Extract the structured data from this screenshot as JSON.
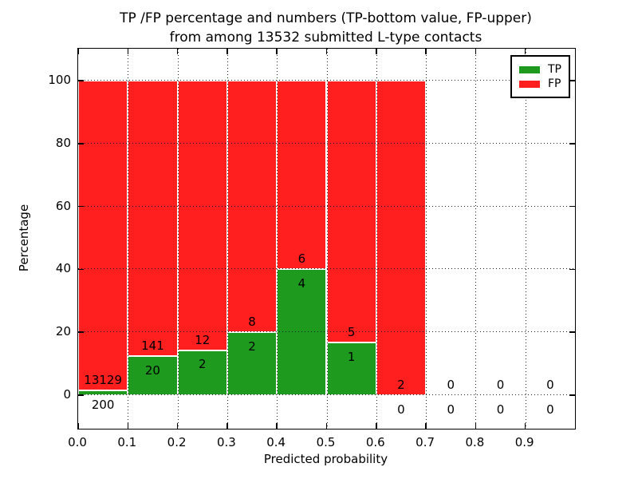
{
  "chart_data": {
    "type": "bar",
    "stacked": true,
    "title": "TP /FP percentage and numbers (TP-bottom value, FP-upper)\nfrom among 13532 submitted L-type contacts",
    "title_line1": "TP /FP percentage and numbers (TP-bottom value, FP-upper)",
    "title_line2": "from among 13532 submitted L-type contacts",
    "xlabel": "Predicted probability",
    "ylabel": "Percentage",
    "total_contacts": 13532,
    "xlim": [
      0.0,
      1.0
    ],
    "ylim": [
      -10.7,
      110.2
    ],
    "yticks": [
      {
        "value": 0,
        "label": "0"
      },
      {
        "value": 20,
        "label": "20"
      },
      {
        "value": 40,
        "label": "40"
      },
      {
        "value": 60,
        "label": "60"
      },
      {
        "value": 80,
        "label": "80"
      },
      {
        "value": 100,
        "label": "100"
      }
    ],
    "xticks": [
      {
        "value": 0.0,
        "label": "0.0"
      },
      {
        "value": 0.1,
        "label": "0.1"
      },
      {
        "value": 0.2,
        "label": "0.2"
      },
      {
        "value": 0.3,
        "label": "0.3"
      },
      {
        "value": 0.4,
        "label": "0.4"
      },
      {
        "value": 0.5,
        "label": "0.5"
      },
      {
        "value": 0.6,
        "label": "0.6"
      },
      {
        "value": 0.7,
        "label": "0.7"
      },
      {
        "value": 0.8,
        "label": "0.8"
      },
      {
        "value": 0.9,
        "label": "0.9"
      }
    ],
    "grid": "dotted",
    "colors": {
      "tp": "#1e9b1e",
      "fp": "#ff1f1f"
    },
    "legend": {
      "position": "upper right",
      "items": [
        {
          "label": "TP",
          "color": "#1e9b1e"
        },
        {
          "label": "FP",
          "color": "#ff1f1f"
        }
      ]
    },
    "bins": [
      {
        "x_start": 0.0,
        "x_end": 0.1,
        "tp": 200,
        "fp": 13129,
        "tp_pct": 1.5,
        "fp_pct": 98.5
      },
      {
        "x_start": 0.1,
        "x_end": 0.2,
        "tp": 20,
        "fp": 141,
        "tp_pct": 12.4,
        "fp_pct": 87.6
      },
      {
        "x_start": 0.2,
        "x_end": 0.3,
        "tp": 2,
        "fp": 12,
        "tp_pct": 14.3,
        "fp_pct": 85.7
      },
      {
        "x_start": 0.3,
        "x_end": 0.4,
        "tp": 2,
        "fp": 8,
        "tp_pct": 20.0,
        "fp_pct": 80.0
      },
      {
        "x_start": 0.4,
        "x_end": 0.5,
        "tp": 4,
        "fp": 6,
        "tp_pct": 40.0,
        "fp_pct": 60.0
      },
      {
        "x_start": 0.5,
        "x_end": 0.6,
        "tp": 1,
        "fp": 5,
        "tp_pct": 16.7,
        "fp_pct": 83.3
      },
      {
        "x_start": 0.6,
        "x_end": 0.7,
        "tp": 0,
        "fp": 2,
        "tp_pct": 0.0,
        "fp_pct": 100.0
      },
      {
        "x_start": 0.7,
        "x_end": 0.8,
        "tp": 0,
        "fp": 0,
        "tp_pct": 0.0,
        "fp_pct": 0.0
      },
      {
        "x_start": 0.8,
        "x_end": 0.9,
        "tp": 0,
        "fp": 0,
        "tp_pct": 0.0,
        "fp_pct": 0.0
      },
      {
        "x_start": 0.9,
        "x_end": 1.0,
        "tp": 0,
        "fp": 0,
        "tp_pct": 0.0,
        "fp_pct": 0.0
      }
    ]
  }
}
